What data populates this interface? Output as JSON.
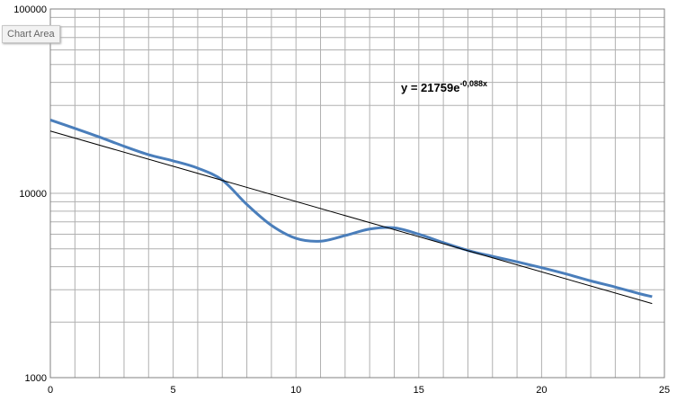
{
  "tooltip": {
    "label": "Chart Area"
  },
  "trendline_label": {
    "prefix": "y = 21759e",
    "exponent": "-0,088x"
  },
  "chart_data": {
    "type": "line",
    "title": "",
    "xlabel": "",
    "ylabel": "",
    "xlim": [
      0,
      25
    ],
    "ylim": [
      1000,
      100000
    ],
    "y_scale": "log",
    "grid": true,
    "x_ticks": [
      0,
      5,
      10,
      15,
      20,
      25
    ],
    "y_tick_labels": [
      "1000",
      "10000",
      "100000"
    ],
    "series": [
      {
        "color": "#4a7ebb",
        "x": [
          0,
          1,
          2,
          3,
          4,
          5,
          6,
          7,
          8,
          9,
          10,
          11,
          12,
          13,
          14,
          15,
          16,
          17,
          18,
          19,
          20,
          21,
          22,
          23,
          24,
          24.5
        ],
        "y": [
          25000,
          22500,
          20200,
          18000,
          16200,
          15000,
          13700,
          11800,
          8700,
          6700,
          5700,
          5500,
          5900,
          6400,
          6500,
          6000,
          5400,
          4900,
          4550,
          4250,
          3950,
          3650,
          3350,
          3100,
          2850,
          2750
        ]
      },
      {
        "color": "#000000",
        "trendline": true,
        "x": [
          0,
          24.5
        ],
        "y": [
          21759,
          2523
        ]
      }
    ]
  }
}
